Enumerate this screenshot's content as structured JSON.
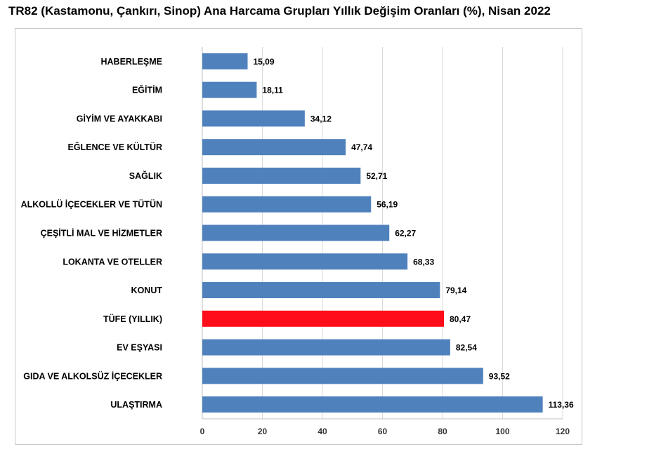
{
  "title": "TR82 (Kastamonu, Çankırı, Sinop) Ana Harcama Grupları Yıllık Değişim Oranları (%), Nisan 2022",
  "chart_data": {
    "type": "bar",
    "orientation": "horizontal",
    "categories": [
      "HABERLEŞME",
      "EĞİTİM",
      "GİYİM VE AYAKKABI",
      "EĞLENCE VE KÜLTÜR",
      "SAĞLIK",
      "ALKOLLÜ İÇECEKLER VE TÜTÜN",
      "ÇEŞİTLİ MAL VE HİZMETLER",
      "LOKANTA VE OTELLER",
      "KONUT",
      "TÜFE (YILLIK)",
      "EV EŞYASI",
      "GIDA VE ALKOLSÜZ İÇECEKLER",
      "ULAŞTIRMA"
    ],
    "values": [
      15.09,
      18.11,
      34.12,
      47.74,
      52.71,
      56.19,
      62.27,
      68.33,
      79.14,
      80.47,
      82.54,
      93.52,
      113.36
    ],
    "value_labels": [
      "15,09",
      "18,11",
      "34,12",
      "47,74",
      "52,71",
      "56,19",
      "62,27",
      "68,33",
      "79,14",
      "80,47",
      "82,54",
      "93,52",
      "113,36"
    ],
    "bar_colors": [
      "#4f81bd",
      "#4f81bd",
      "#4f81bd",
      "#4f81bd",
      "#4f81bd",
      "#4f81bd",
      "#4f81bd",
      "#4f81bd",
      "#4f81bd",
      "#ff0d1a",
      "#4f81bd",
      "#4f81bd",
      "#4f81bd"
    ],
    "xlim": [
      0,
      120
    ],
    "x_ticks": [
      "0",
      "20",
      "40",
      "60",
      "80",
      "100",
      "120"
    ],
    "grid": "vertical",
    "legend": "none"
  }
}
